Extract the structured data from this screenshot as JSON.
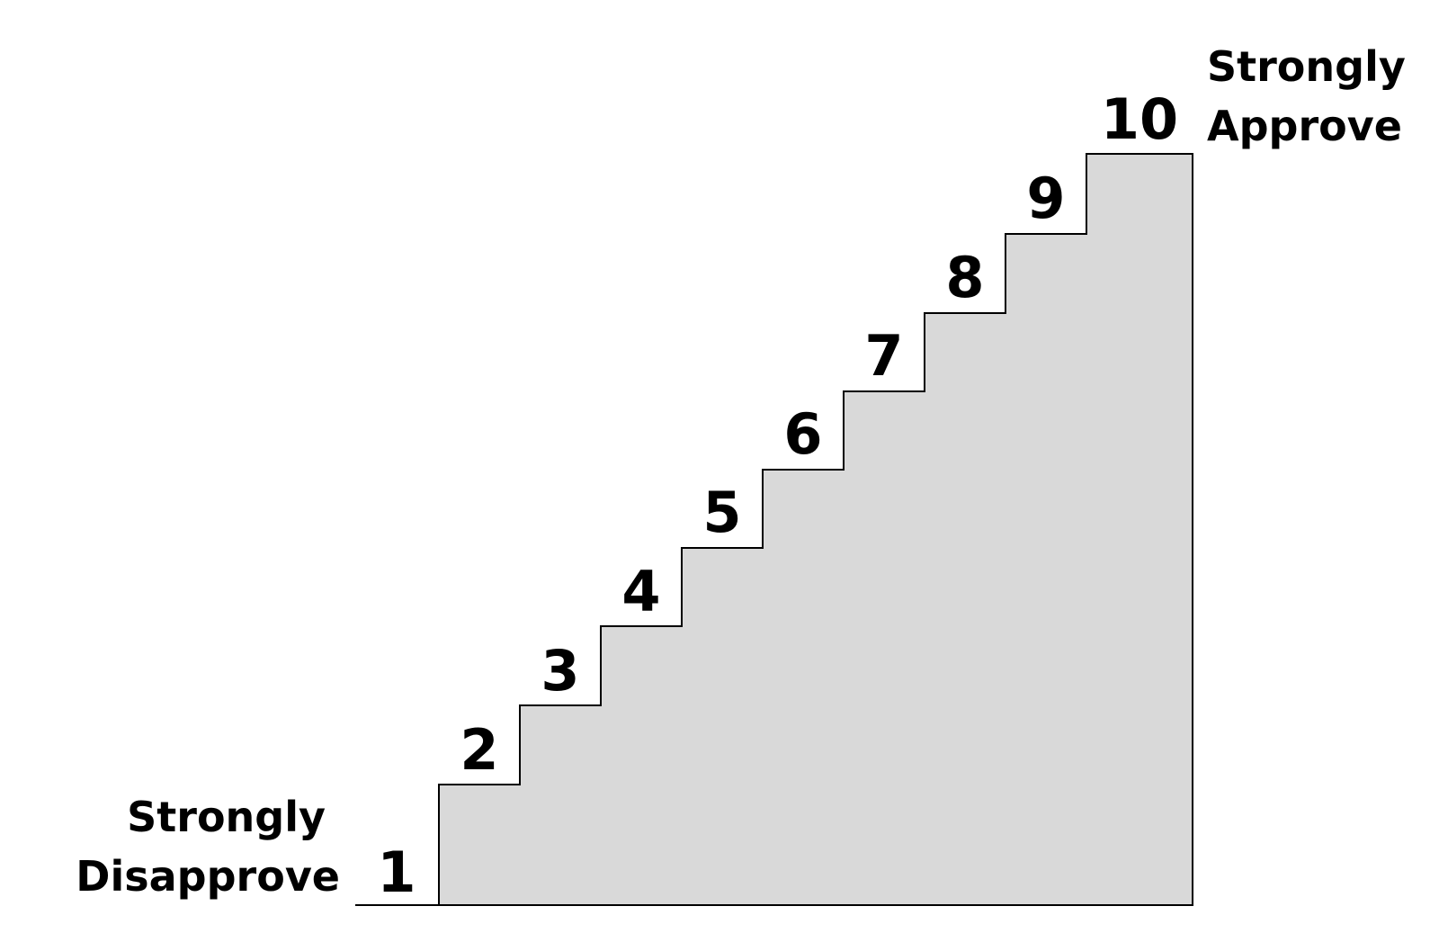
{
  "scale": {
    "low_label": [
      "Strongly",
      "Disapprove"
    ],
    "high_label": [
      "Strongly",
      "Approve"
    ],
    "steps": [
      "1",
      "2",
      "3",
      "4",
      "5",
      "6",
      "7",
      "8",
      "9",
      "10"
    ]
  },
  "colors": {
    "stair_fill": "#d9d9d9",
    "stair_stroke": "#000000",
    "text": "#000000",
    "background": "#ffffff"
  }
}
